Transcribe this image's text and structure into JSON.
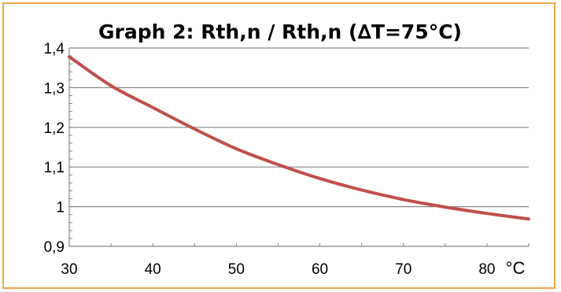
{
  "chart_data": {
    "type": "line",
    "title": "Graph 2: Rth,n / Rth,n (∆T=75°C)",
    "xlabel": "",
    "x_unit_label": "°C",
    "ylabel": "",
    "xlim": [
      30,
      85
    ],
    "ylim": [
      0.9,
      1.4
    ],
    "x_ticks": [
      30,
      40,
      50,
      60,
      70,
      80
    ],
    "x_tick_labels": [
      "30",
      "40",
      "50",
      "60",
      "70",
      "80"
    ],
    "y_ticks": [
      0.9,
      1.0,
      1.1,
      1.2,
      1.3,
      1.4
    ],
    "y_tick_labels": [
      "0,9",
      "1",
      "1,1",
      "1,2",
      "1,3",
      "1,4"
    ],
    "grid": "horizontal",
    "legend": "none",
    "series": [
      {
        "color": "#c0504d",
        "x": [
          30,
          35,
          40,
          45,
          50,
          55,
          60,
          65,
          70,
          75,
          80,
          85
        ],
        "y": [
          1.378,
          1.305,
          1.25,
          1.196,
          1.146,
          1.106,
          1.071,
          1.042,
          1.018,
          0.999,
          0.983,
          0.969
        ]
      }
    ]
  }
}
